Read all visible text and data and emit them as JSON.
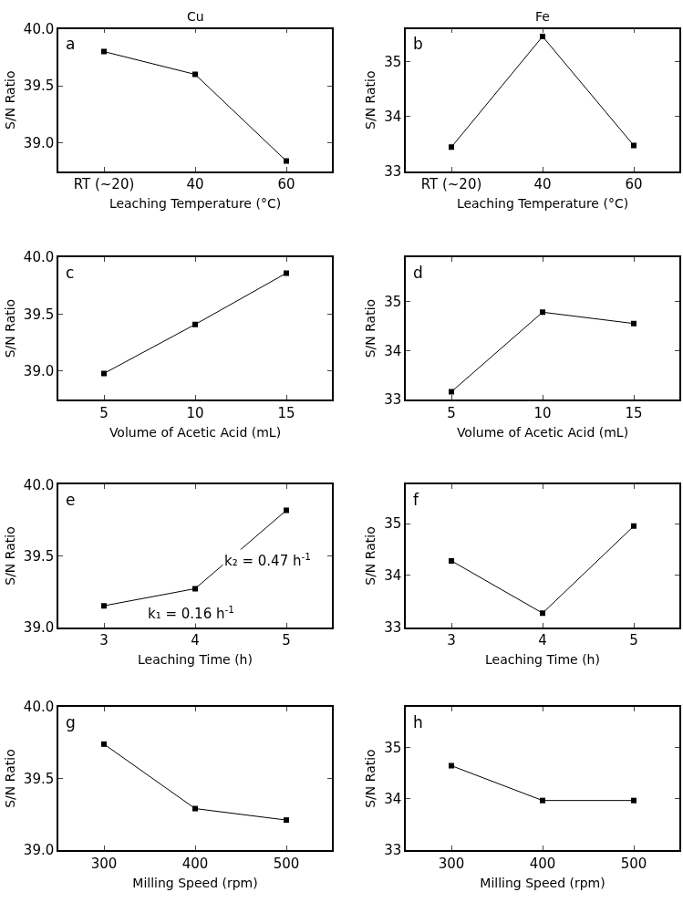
{
  "chart_data": [
    {
      "type": "line",
      "title": "Cu",
      "xlabel": "Leaching Temperature (°C)",
      "ylabel": "S/N Ratio",
      "categories": [
        "RT (~20)",
        "40",
        "60"
      ],
      "values": [
        39.8,
        39.6,
        38.84
      ],
      "color": "#000000",
      "marker": "square",
      "ylim": [
        38.75,
        40.0
      ],
      "yticks": [
        {
          "value": 39.0,
          "label": "39.0"
        },
        {
          "value": 39.5,
          "label": "39.5"
        },
        {
          "value": 40.0,
          "label": "40.0"
        }
      ],
      "annotations": [
        "a"
      ]
    },
    {
      "type": "line",
      "title": "Fe",
      "xlabel": "Leaching Temperature (°C)",
      "ylabel": "S/N Ratio",
      "categories": [
        "RT (~20)",
        "40",
        "60"
      ],
      "values": [
        33.44,
        35.46,
        33.47
      ],
      "color": "#000000",
      "marker": "square",
      "ylim": [
        33,
        35.6
      ],
      "yticks": [
        33,
        34,
        35
      ],
      "annotations": [
        "b"
      ]
    },
    {
      "type": "line",
      "xlabel": "Volume of Acetic Acid (mL)",
      "ylabel": "S/N Ratio",
      "x": [
        5,
        10,
        15
      ],
      "values": [
        38.98,
        39.41,
        39.86
      ],
      "color": "#000000",
      "marker": "square",
      "xlim": [
        2.5,
        17.5
      ],
      "xticks": [
        5,
        10,
        15
      ],
      "ylim": [
        38.75,
        40.0
      ],
      "yticks": [
        {
          "value": 39.0,
          "label": "39.0"
        },
        {
          "value": 39.5,
          "label": "39.5"
        },
        {
          "value": 40.0,
          "label": "40.0"
        }
      ],
      "annotations": [
        "c"
      ]
    },
    {
      "type": "line",
      "xlabel": "Volume of Acetic Acid (mL)",
      "ylabel": "S/N Ratio",
      "x": [
        5,
        10,
        15
      ],
      "values": [
        33.16,
        34.78,
        34.55
      ],
      "color": "#000000",
      "marker": "square",
      "xlim": [
        2.5,
        17.5
      ],
      "xticks": [
        5,
        10,
        15
      ],
      "ylim": [
        33,
        35.9
      ],
      "yticks": [
        33,
        34,
        35
      ],
      "annotations": [
        "d"
      ]
    },
    {
      "type": "line",
      "xlabel": "Leaching Time (h)",
      "ylabel": "S/N Ratio",
      "x": [
        3,
        4,
        5
      ],
      "values": [
        39.15,
        39.27,
        39.82
      ],
      "color": "#000000",
      "marker": "square",
      "xlim": [
        2.5,
        5.5
      ],
      "xticks": [
        3,
        4,
        5
      ],
      "ylim": [
        39.0,
        40.0
      ],
      "yticks": [
        {
          "value": 39.0,
          "label": "39.0"
        },
        {
          "value": 39.5,
          "label": "39.5"
        },
        {
          "value": 40.0,
          "label": "40.0"
        }
      ],
      "annotations": [
        "e",
        "k₁ = 0.16 h$^{-1}$",
        "k₂ = 0.47 h$^{-1}$"
      ]
    },
    {
      "type": "line",
      "xlabel": "Leaching Time (h)",
      "ylabel": "S/N Ratio",
      "x": [
        3,
        4,
        5
      ],
      "values": [
        34.28,
        33.27,
        34.95
      ],
      "color": "#000000",
      "marker": "square",
      "xlim": [
        2.5,
        5.5
      ],
      "xticks": [
        3,
        4,
        5
      ],
      "ylim": [
        33,
        35.75
      ],
      "yticks": [
        33,
        34,
        35
      ],
      "annotations": [
        "f"
      ]
    },
    {
      "type": "line",
      "xlabel": "Milling Speed (rpm)",
      "ylabel": "S/N Ratio",
      "x": [
        300,
        400,
        500
      ],
      "values": [
        39.74,
        39.29,
        39.21
      ],
      "color": "#000000",
      "marker": "square",
      "xlim": [
        250,
        550
      ],
      "xticks": [
        300,
        400,
        500
      ],
      "ylim": [
        39.0,
        40.0
      ],
      "yticks": [
        {
          "value": 39.0,
          "label": "39.0"
        },
        {
          "value": 39.5,
          "label": "39.5"
        },
        {
          "value": 40.0,
          "label": "40.0"
        }
      ],
      "annotations": [
        "g"
      ]
    },
    {
      "type": "line",
      "xlabel": "Milling Speed (rpm)",
      "ylabel": "S/N Ratio",
      "x": [
        300,
        400,
        500
      ],
      "values": [
        34.65,
        33.97,
        33.97
      ],
      "color": "#000000",
      "marker": "square",
      "xlim": [
        250,
        550
      ],
      "xticks": [
        300,
        400,
        500
      ],
      "ylim": [
        33,
        35.8
      ],
      "yticks": [
        33,
        34,
        35
      ],
      "annotations": [
        "h"
      ]
    }
  ]
}
